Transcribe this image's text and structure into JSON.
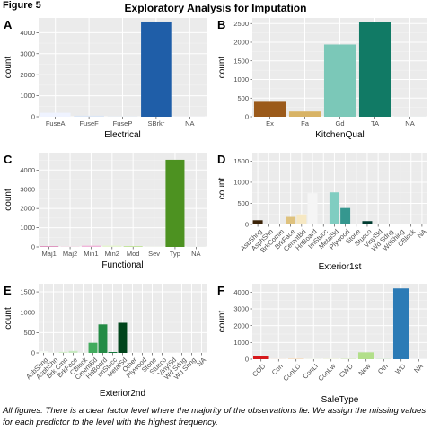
{
  "figure_label": "Figure 5",
  "title": "Exploratory Analysis for Imputation",
  "caption": "All figures: There is a clear factor level where the majority of the observations lie. We assign the missing values for each predictor to the level with the highest frequency.",
  "chart_data": [
    {
      "id": "A",
      "type": "bar",
      "xlabel": "Electrical",
      "ylabel": "count",
      "ylim": [
        0,
        4700
      ],
      "yticks": [
        0,
        1000,
        2000,
        3000,
        4000
      ],
      "rotate": false,
      "categories": [
        "FuseA",
        "FuseF",
        "FuseP",
        "SBrkr",
        "NA"
      ],
      "values": [
        188,
        50,
        8,
        4530,
        1
      ],
      "colors": [
        "#eff3ff",
        "#dbe6f5",
        "#c6dbef",
        "#1f5ea8",
        "#0d2f6e"
      ]
    },
    {
      "id": "B",
      "type": "bar",
      "xlabel": "KitchenQual",
      "ylabel": "count",
      "ylim": [
        0,
        2650
      ],
      "yticks": [
        0,
        500,
        1000,
        1500,
        2000,
        2500
      ],
      "rotate": false,
      "categories": [
        "Ex",
        "Fa",
        "Gd",
        "TA",
        "NA"
      ],
      "values": [
        400,
        140,
        1940,
        2540,
        1
      ],
      "colors": [
        "#9b5a1a",
        "#d8b365",
        "#7bc8b8",
        "#117a65",
        "#0b4f3f"
      ]
    },
    {
      "id": "C",
      "type": "bar",
      "xlabel": "Functional",
      "ylabel": "count",
      "ylim": [
        0,
        4900
      ],
      "yticks": [
        0,
        1000,
        2000,
        3000,
        4000
      ],
      "rotate": false,
      "categories": [
        "Maj1",
        "Maj2",
        "Min1",
        "Min2",
        "Mod",
        "Sev",
        "Typ",
        "NA"
      ],
      "values": [
        19,
        9,
        65,
        70,
        35,
        2,
        4530,
        2
      ],
      "colors": [
        "#c51b7d",
        "#e9a3c9",
        "#f1b6da",
        "#e6f5d0",
        "#b8e186",
        "#7fbc41",
        "#4d9221",
        "#276419"
      ]
    },
    {
      "id": "D",
      "type": "bar",
      "xlabel": "Exterior1st",
      "ylabel": "count",
      "ylim": [
        0,
        1700
      ],
      "yticks": [
        0,
        500,
        1000,
        1500
      ],
      "rotate": true,
      "categories": [
        "AsbShng",
        "AsphShn",
        "BrkComm",
        "BrkFace",
        "CemntBd",
        "HdBoard",
        "ImStucc",
        "MetalSd",
        "Plywood",
        "Stone",
        "Stucco",
        "VinylSd",
        "Wd Sdng",
        "WdShing",
        "CBlock",
        "NA"
      ],
      "values": [
        100,
        2,
        10,
        180,
        240,
        740,
        8,
        760,
        390,
        4,
        80,
        20,
        20,
        10,
        4,
        1
      ],
      "colors": [
        "#3b2308",
        "#8c510a",
        "#bf812d",
        "#dfc27d",
        "#f6e8c3",
        "#f5f5f5",
        "#c7eae5",
        "#80cdc1",
        "#35978f",
        "#01665e",
        "#003c30",
        "#e8e8e8",
        "#e8e8e8",
        "#e8e8e8",
        "#e8e8e8",
        "#e8e8e8"
      ]
    },
    {
      "id": "E",
      "type": "bar",
      "xlabel": "Exterior2nd",
      "ylabel": "count",
      "ylim": [
        0,
        1700
      ],
      "yticks": [
        0,
        500,
        1000,
        1500
      ],
      "rotate": true,
      "categories": [
        "AsbShng",
        "AsphShn",
        "Brk Cmn",
        "BrkFace",
        "CBlock",
        "CmentBd",
        "HdBoard",
        "ImStucc",
        "MetalSd",
        "Other",
        "Plywood",
        "Stone",
        "Stucco",
        "VinylSd",
        "Wd Sdng",
        "Wd Shng",
        "NA"
      ],
      "values": [
        40,
        6,
        25,
        48,
        3,
        250,
        700,
        20,
        740,
        1,
        5,
        5,
        5,
        5,
        5,
        5,
        1
      ],
      "colors": [
        "#f7fcf5",
        "#e5f5e0",
        "#d4eecc",
        "#c7e9c0",
        "#a1d99b",
        "#41ab5d",
        "#238b45",
        "#006d2c",
        "#00441b",
        "#e8e8e8",
        "#e8e8e8",
        "#e8e8e8",
        "#e8e8e8",
        "#e8e8e8",
        "#e8e8e8",
        "#e8e8e8",
        "#e8e8e8"
      ]
    },
    {
      "id": "F",
      "type": "bar",
      "xlabel": "SaleType",
      "ylabel": "count",
      "ylim": [
        0,
        4500
      ],
      "yticks": [
        0,
        1000,
        2000,
        3000,
        4000
      ],
      "rotate": true,
      "categories": [
        "COD",
        "Con",
        "ConLD",
        "ConLI",
        "ConLw",
        "CWD",
        "New",
        "Oth",
        "WD",
        "NA"
      ],
      "values": [
        180,
        4,
        25,
        9,
        8,
        12,
        410,
        7,
        4220,
        1
      ],
      "colors": [
        "#d7191c",
        "#fdae61",
        "#fdd49e",
        "#e6f5d0",
        "#d9ef8b",
        "#a6d96a",
        "#b2df8a",
        "#66bd63",
        "#2c7bb6",
        "#1a5190"
      ]
    }
  ]
}
